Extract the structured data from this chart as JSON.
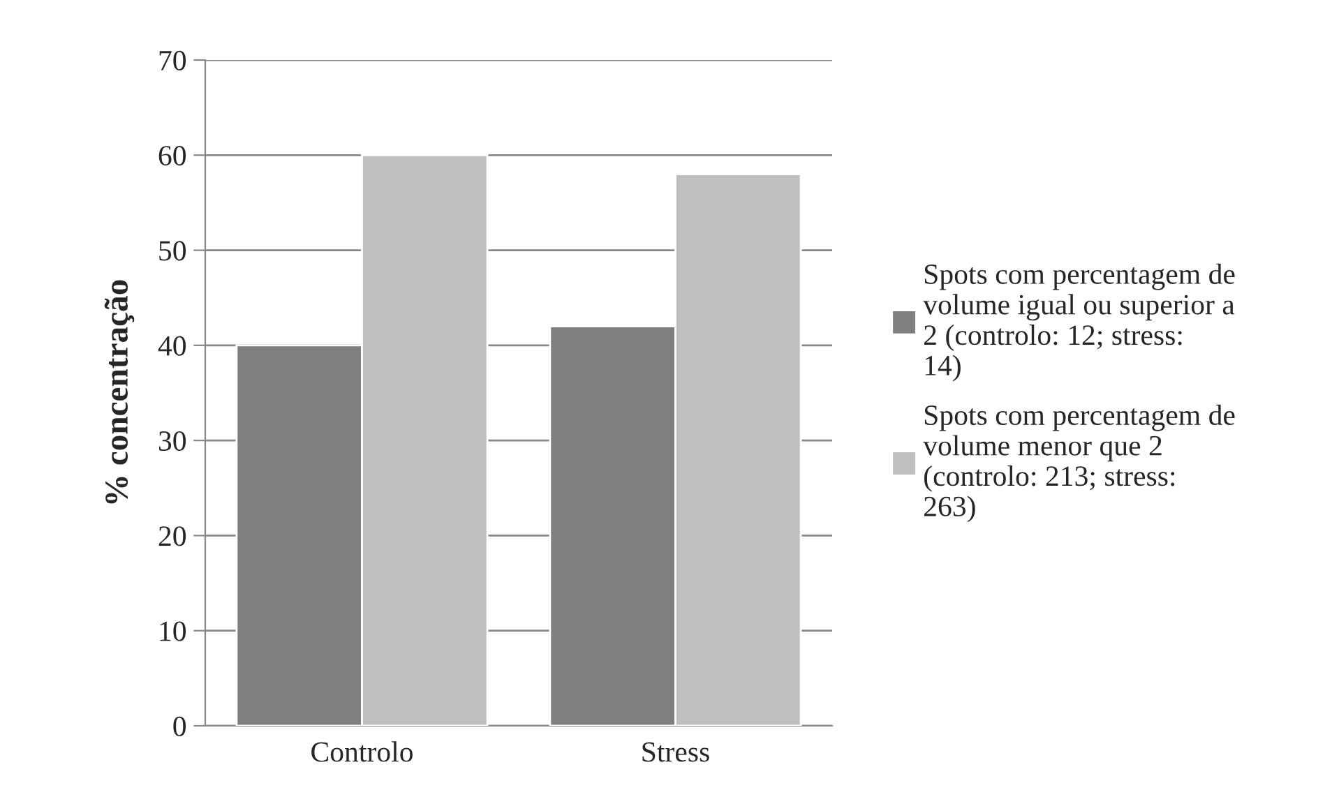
{
  "chart_data": {
    "type": "bar",
    "ylabel": "% concentração",
    "categories": [
      "Controlo",
      "Stress"
    ],
    "series": [
      {
        "name": "Spots com percentagem de volume igual ou superior a 2 (controlo: 12; stress: 14)",
        "color": "#7f7f7f",
        "values": [
          40,
          42
        ]
      },
      {
        "name": "Spots com percentagem de volume menor que 2 (controlo: 213; stress: 263)",
        "color": "#bfbfbf",
        "values": [
          60,
          58
        ]
      }
    ],
    "ylim": [
      0,
      70
    ],
    "yticks": [
      0,
      10,
      20,
      30,
      40,
      50,
      60,
      70
    ],
    "grid": "y",
    "legend": "right"
  }
}
